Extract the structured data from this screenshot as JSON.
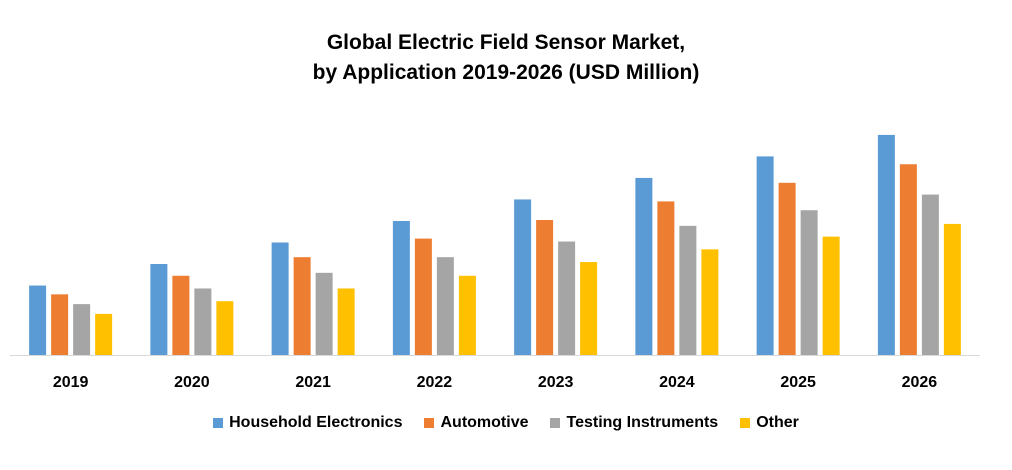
{
  "chart_data": {
    "type": "bar",
    "title_line1": "Global Electric Field Sensor Market,",
    "title_line2": "by Application  2019-2026 (USD Million)",
    "xlabel": "",
    "ylabel": "",
    "categories": [
      "2019",
      "2020",
      "2021",
      "2022",
      "2023",
      "2024",
      "2025",
      "2026"
    ],
    "ylim": [
      0,
      230
    ],
    "grid": false,
    "legend_position": "bottom",
    "series": [
      {
        "name": "Household Electronics",
        "color": "#5B9BD5",
        "values": [
          71,
          93,
          115,
          137,
          159,
          181,
          203,
          225
        ]
      },
      {
        "name": "Automotive",
        "color": "#ED7D31",
        "values": [
          62,
          81,
          100,
          119,
          138,
          157,
          176,
          195
        ]
      },
      {
        "name": "Testing Instruments",
        "color": "#A5A5A5",
        "values": [
          52,
          68,
          84,
          100,
          116,
          132,
          148,
          164
        ]
      },
      {
        "name": "Other",
        "color": "#FFC000",
        "values": [
          42,
          55,
          68,
          81,
          95,
          108,
          121,
          134
        ]
      }
    ]
  }
}
